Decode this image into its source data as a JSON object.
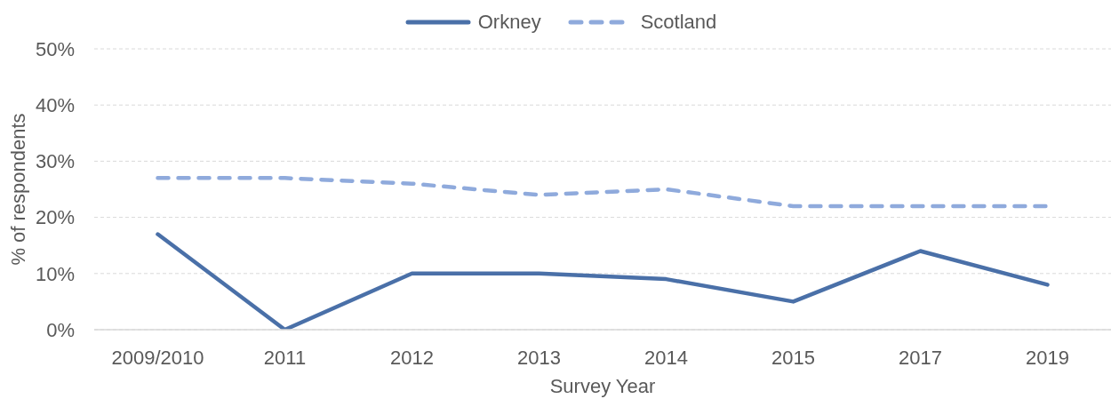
{
  "chart_data": {
    "type": "line",
    "xlabel": "Survey Year",
    "ylabel": "% of respondents",
    "categories": [
      "2009/2010",
      "2011",
      "2012",
      "2013",
      "2014",
      "2015",
      "2017",
      "2019"
    ],
    "series": [
      {
        "name": "Orkney",
        "color": "#4a70a8",
        "line_style": "solid",
        "values": [
          17,
          0,
          10,
          10,
          9,
          5,
          14,
          8
        ]
      },
      {
        "name": "Scotland",
        "color": "#8faadc",
        "line_style": "dashed",
        "values": [
          27,
          27,
          26,
          24,
          25,
          22,
          22,
          22
        ]
      }
    ],
    "ylim": [
      0,
      50
    ],
    "yticks": [
      {
        "value": 0,
        "label": "0%"
      },
      {
        "value": 10,
        "label": "10%"
      },
      {
        "value": 20,
        "label": "20%"
      },
      {
        "value": 30,
        "label": "30%"
      },
      {
        "value": 40,
        "label": "40%"
      },
      {
        "value": 50,
        "label": "50%"
      }
    ],
    "grid": "y",
    "legend": "top",
    "marker": "none"
  }
}
